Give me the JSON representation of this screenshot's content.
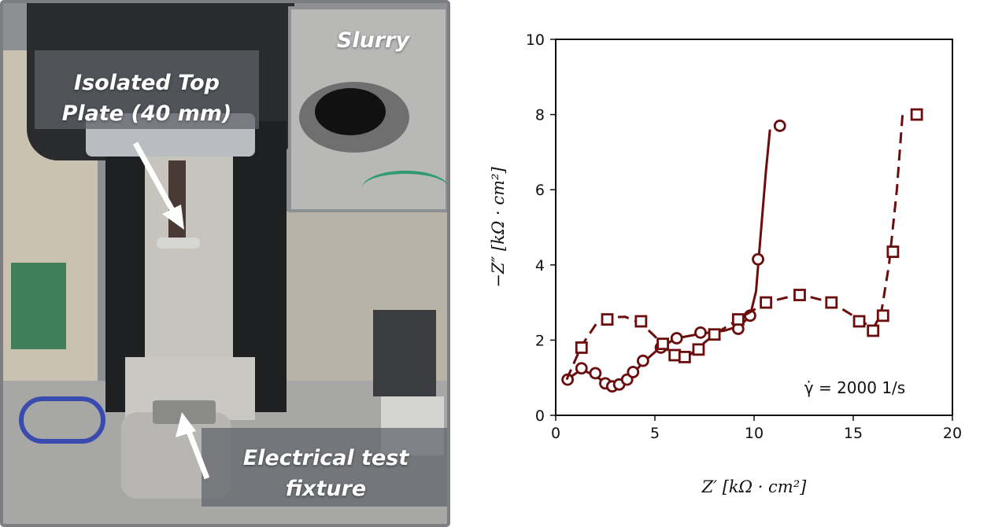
{
  "photo": {
    "labels": {
      "top_plate_line1": "Isolated Top",
      "top_plate_line2": "Plate (40 mm)",
      "slurry": "Slurry",
      "fixture_line1": "Electrical test",
      "fixture_line2": "fixture"
    }
  },
  "chart_data": {
    "type": "scatter",
    "xlim": [
      0,
      20
    ],
    "ylim": [
      0,
      10
    ],
    "x_ticks": [
      0,
      5,
      10,
      15,
      20
    ],
    "y_ticks": [
      0,
      2,
      4,
      6,
      8,
      10
    ],
    "xlabel": "Z′ [kΩ · cm²]",
    "ylabel": "−Z″ [kΩ · cm²]",
    "annotation": "γ̇ = 2000 1/s",
    "color": "#6b0d0d",
    "series": [
      {
        "marker": "circle",
        "line": "solid",
        "points": [
          [
            0.6,
            0.95
          ],
          [
            1.3,
            1.25
          ],
          [
            2.0,
            1.12
          ],
          [
            2.5,
            0.85
          ],
          [
            2.85,
            0.77
          ],
          [
            3.2,
            0.82
          ],
          [
            3.6,
            0.95
          ],
          [
            3.9,
            1.15
          ],
          [
            4.4,
            1.45
          ],
          [
            5.3,
            1.8
          ],
          [
            6.1,
            2.05
          ],
          [
            7.3,
            2.2
          ],
          [
            9.2,
            2.3
          ],
          [
            9.8,
            2.65
          ],
          [
            10.2,
            4.15
          ],
          [
            11.3,
            7.7
          ]
        ],
        "fit": [
          [
            0.55,
            0.95
          ],
          [
            1.3,
            1.22
          ],
          [
            2.0,
            1.05
          ],
          [
            2.6,
            0.82
          ],
          [
            2.9,
            0.76
          ],
          [
            3.4,
            0.88
          ],
          [
            3.9,
            1.12
          ],
          [
            4.5,
            1.45
          ],
          [
            5.3,
            1.82
          ],
          [
            6.1,
            2.05
          ],
          [
            7.3,
            2.17
          ],
          [
            8.5,
            2.25
          ],
          [
            9.3,
            2.38
          ],
          [
            9.8,
            2.65
          ],
          [
            10.1,
            3.3
          ],
          [
            10.3,
            4.6
          ],
          [
            10.6,
            6.5
          ],
          [
            10.8,
            7.6
          ]
        ]
      },
      {
        "marker": "square",
        "line": "dashed",
        "points": [
          [
            1.3,
            1.8
          ],
          [
            2.6,
            2.55
          ],
          [
            4.3,
            2.5
          ],
          [
            5.4,
            1.9
          ],
          [
            6.0,
            1.6
          ],
          [
            6.5,
            1.55
          ],
          [
            7.2,
            1.75
          ],
          [
            8.0,
            2.15
          ],
          [
            9.2,
            2.55
          ],
          [
            10.6,
            3.0
          ],
          [
            12.3,
            3.2
          ],
          [
            13.9,
            3.0
          ],
          [
            15.3,
            2.5
          ],
          [
            16.0,
            2.25
          ],
          [
            16.5,
            2.65
          ],
          [
            17.0,
            4.35
          ],
          [
            18.2,
            8.0
          ]
        ],
        "fit": [
          [
            0.55,
            0.95
          ],
          [
            1.3,
            1.85
          ],
          [
            2.0,
            2.4
          ],
          [
            2.6,
            2.6
          ],
          [
            3.5,
            2.62
          ],
          [
            4.3,
            2.45
          ],
          [
            5.0,
            2.1
          ],
          [
            5.6,
            1.75
          ],
          [
            6.1,
            1.58
          ],
          [
            6.7,
            1.58
          ],
          [
            7.3,
            1.85
          ],
          [
            8.0,
            2.15
          ],
          [
            9.2,
            2.55
          ],
          [
            10.6,
            3.0
          ],
          [
            12.3,
            3.22
          ],
          [
            13.9,
            3.0
          ],
          [
            15.3,
            2.55
          ],
          [
            16.0,
            2.3
          ],
          [
            16.4,
            2.7
          ],
          [
            16.8,
            4.0
          ],
          [
            17.2,
            6.0
          ],
          [
            17.5,
            8.1
          ]
        ]
      }
    ]
  }
}
